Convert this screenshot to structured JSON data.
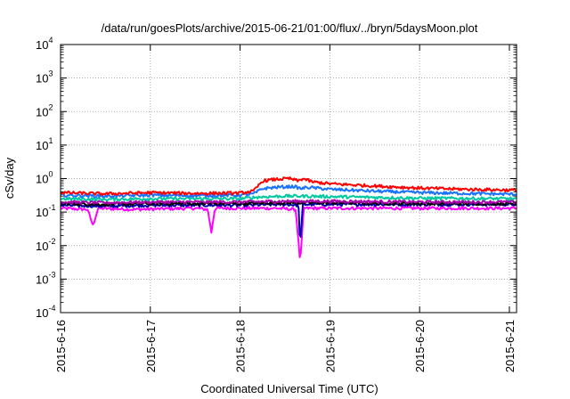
{
  "chart_data": {
    "type": "line",
    "title": "/data/run/goesPlots/archive/2015-06-21/01:00/flux/../bryn/5daysMoon.plot",
    "xlabel": "Coordinated Universal Time (UTC)",
    "ylabel": "cSv/day",
    "y_scale": "log",
    "ylim": [
      0.0001,
      10000
    ],
    "xlim": [
      0,
      5.08
    ],
    "grid": true,
    "legend": "none",
    "x_ticks": [
      {
        "value": 0,
        "label": "2015-6-16"
      },
      {
        "value": 1,
        "label": "2015-6-17"
      },
      {
        "value": 2,
        "label": "2015-6-18"
      },
      {
        "value": 3,
        "label": "2015-6-19"
      },
      {
        "value": 4,
        "label": "2015-6-20"
      },
      {
        "value": 5,
        "label": "2015-6-21"
      }
    ],
    "y_ticks": [
      {
        "value": 0.0001,
        "base": "10",
        "exp": "-4"
      },
      {
        "value": 0.001,
        "base": "10",
        "exp": "-3"
      },
      {
        "value": 0.01,
        "base": "10",
        "exp": "-2"
      },
      {
        "value": 0.1,
        "base": "10",
        "exp": "-1"
      },
      {
        "value": 1,
        "base": "10",
        "exp": "0"
      },
      {
        "value": 10,
        "base": "10",
        "exp": "1"
      },
      {
        "value": 100,
        "base": "10",
        "exp": "2"
      },
      {
        "value": 1000,
        "base": "10",
        "exp": "3"
      },
      {
        "value": 10000,
        "base": "10",
        "exp": "4"
      }
    ],
    "series": [
      {
        "color": "#ff00ff",
        "points": [
          [
            0,
            0.13
          ],
          [
            0.3,
            0.12
          ],
          [
            0.36,
            0.04
          ],
          [
            0.42,
            0.13
          ],
          [
            0.8,
            0.12
          ],
          [
            1.5,
            0.13
          ],
          [
            1.64,
            0.12
          ],
          [
            1.68,
            0.025
          ],
          [
            1.72,
            0.13
          ],
          [
            2.4,
            0.13
          ],
          [
            2.62,
            0.12
          ],
          [
            2.67,
            0.003
          ],
          [
            2.71,
            0.13
          ],
          [
            3.0,
            0.13
          ],
          [
            4.0,
            0.13
          ],
          [
            5.08,
            0.13
          ]
        ]
      },
      {
        "color": "#0000aa",
        "points": [
          [
            0,
            0.16
          ],
          [
            0.5,
            0.15
          ],
          [
            1.0,
            0.16
          ],
          [
            1.5,
            0.16
          ],
          [
            2.0,
            0.16
          ],
          [
            2.5,
            0.17
          ],
          [
            2.65,
            0.16
          ],
          [
            2.67,
            0.01
          ],
          [
            2.7,
            0.17
          ],
          [
            3.0,
            0.17
          ],
          [
            4.0,
            0.17
          ],
          [
            5.08,
            0.17
          ]
        ]
      },
      {
        "color": "#000000",
        "points": [
          [
            0,
            0.18
          ],
          [
            0.5,
            0.17
          ],
          [
            1.0,
            0.18
          ],
          [
            1.5,
            0.18
          ],
          [
            2.0,
            0.18
          ],
          [
            2.5,
            0.19
          ],
          [
            3.0,
            0.19
          ],
          [
            4.0,
            0.18
          ],
          [
            5.08,
            0.18
          ]
        ]
      },
      {
        "color": "#aa00aa",
        "points": [
          [
            0,
            0.2
          ],
          [
            0.5,
            0.19
          ],
          [
            1.0,
            0.2
          ],
          [
            1.5,
            0.2
          ],
          [
            2.0,
            0.2
          ],
          [
            2.5,
            0.21
          ],
          [
            3.0,
            0.21
          ],
          [
            4.0,
            0.2
          ],
          [
            5.08,
            0.2
          ]
        ]
      },
      {
        "color": "#00c8a0",
        "points": [
          [
            0,
            0.25
          ],
          [
            0.5,
            0.24
          ],
          [
            1.0,
            0.25
          ],
          [
            1.5,
            0.25
          ],
          [
            2.0,
            0.25
          ],
          [
            2.2,
            0.28
          ],
          [
            2.5,
            0.3
          ],
          [
            2.7,
            0.3
          ],
          [
            3.0,
            0.29
          ],
          [
            4.0,
            0.26
          ],
          [
            5.08,
            0.25
          ]
        ]
      },
      {
        "color": "#1a73ff",
        "points": [
          [
            0,
            0.32
          ],
          [
            0.5,
            0.3
          ],
          [
            1.0,
            0.32
          ],
          [
            1.5,
            0.31
          ],
          [
            2.0,
            0.32
          ],
          [
            2.15,
            0.35
          ],
          [
            2.25,
            0.5
          ],
          [
            2.4,
            0.55
          ],
          [
            2.6,
            0.58
          ],
          [
            2.68,
            0.5
          ],
          [
            2.75,
            0.55
          ],
          [
            3.0,
            0.48
          ],
          [
            3.5,
            0.42
          ],
          [
            4.0,
            0.38
          ],
          [
            4.5,
            0.36
          ],
          [
            5.08,
            0.34
          ]
        ]
      },
      {
        "color": "#ff0000",
        "points": [
          [
            0,
            0.38
          ],
          [
            0.5,
            0.35
          ],
          [
            1.0,
            0.38
          ],
          [
            1.5,
            0.36
          ],
          [
            2.0,
            0.37
          ],
          [
            2.15,
            0.42
          ],
          [
            2.25,
            0.85
          ],
          [
            2.4,
            0.95
          ],
          [
            2.55,
            1.0
          ],
          [
            2.65,
            0.85
          ],
          [
            2.7,
            1.0
          ],
          [
            2.8,
            0.8
          ],
          [
            3.0,
            0.7
          ],
          [
            3.5,
            0.6
          ],
          [
            4.0,
            0.52
          ],
          [
            4.5,
            0.48
          ],
          [
            5.08,
            0.45
          ]
        ]
      }
    ]
  }
}
